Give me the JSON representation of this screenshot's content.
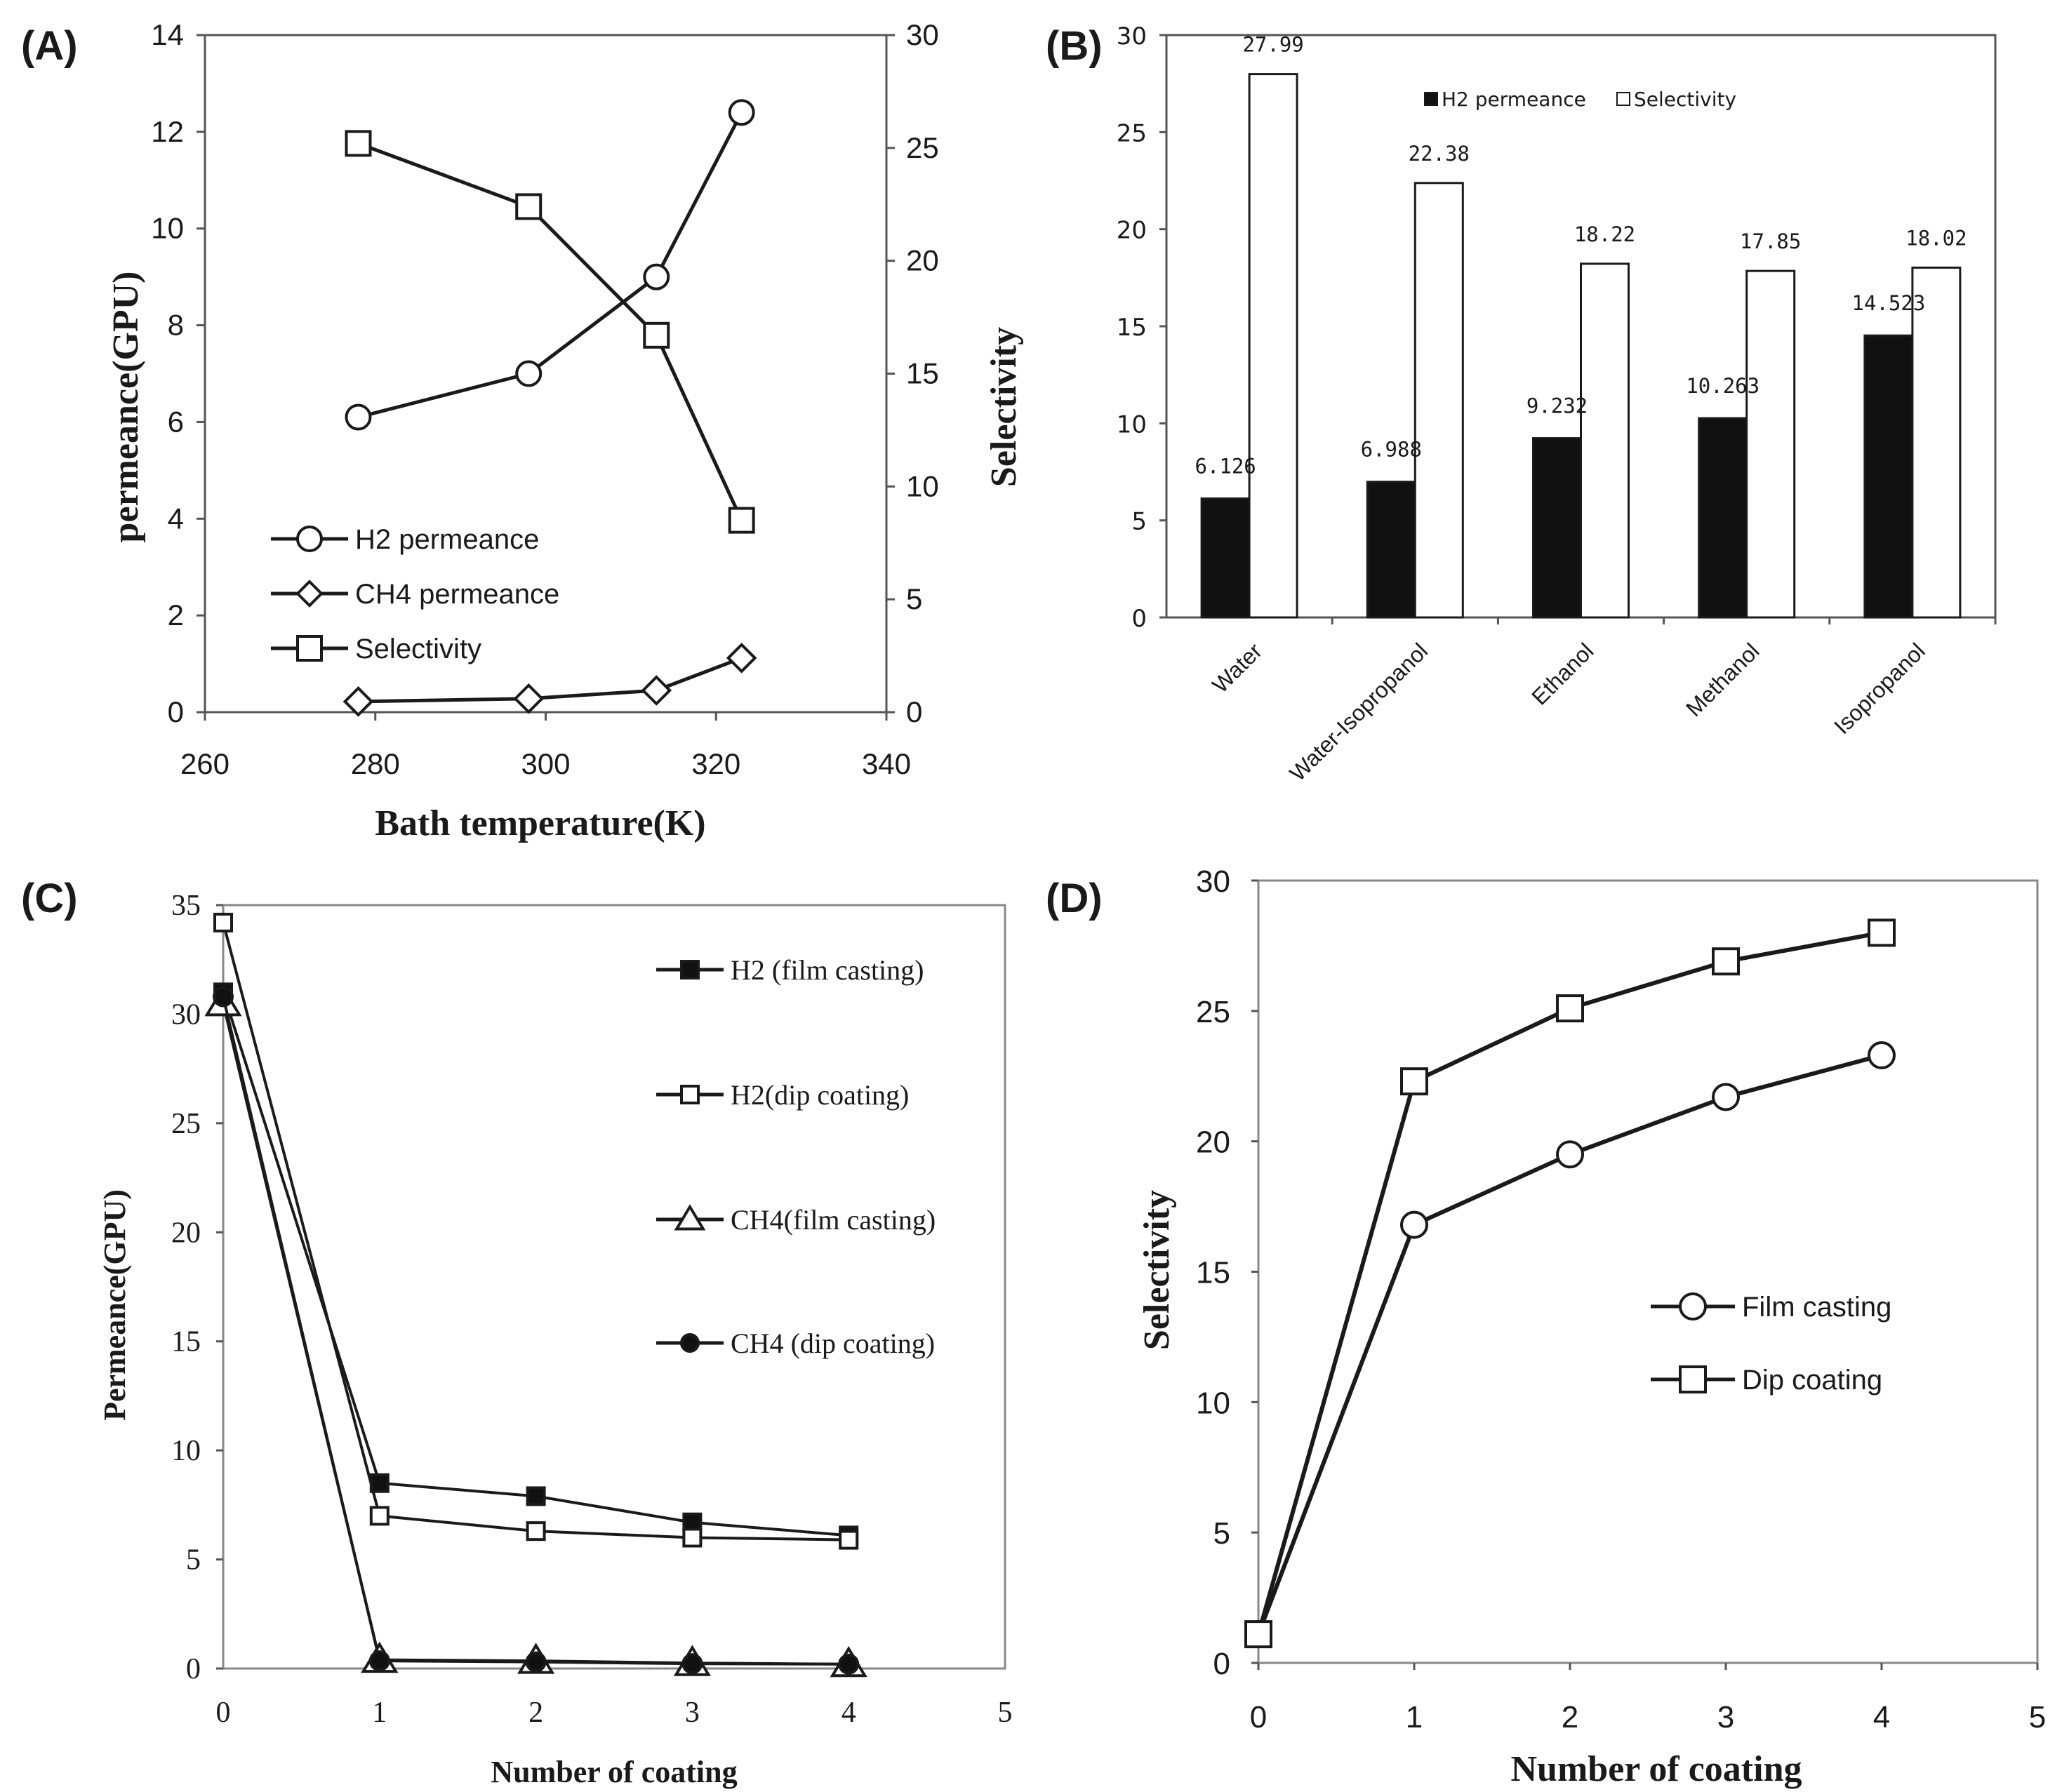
{
  "colors": {
    "line": "#1a1a1a",
    "frame": "#555555",
    "fill_open": "#ffffff",
    "fill_solid": "#111111"
  },
  "chart_data": [
    {
      "panel": "(A)",
      "type": "line",
      "title": "",
      "xlabel": "Bath temperature(K)",
      "ylabel": "permeance(GPU)",
      "y2label": "Selectivity",
      "xlim": [
        260,
        340
      ],
      "ylim": [
        0,
        14
      ],
      "y2lim": [
        0,
        30
      ],
      "xticks": [
        "260",
        "280",
        "300",
        "320",
        "340"
      ],
      "yticks": [
        "0",
        "2",
        "4",
        "6",
        "8",
        "10",
        "12",
        "14"
      ],
      "y2ticks": [
        "0",
        "5",
        "10",
        "15",
        "20",
        "25",
        "30"
      ],
      "x": [
        278,
        298,
        313,
        323
      ],
      "series": [
        {
          "name": "H2 permeance",
          "marker": "circle",
          "axis": "left",
          "values": [
            6.1,
            7.0,
            9.0,
            12.4
          ]
        },
        {
          "name": "CH4 permeance",
          "marker": "diamond",
          "axis": "left",
          "values": [
            0.22,
            0.28,
            0.45,
            1.12
          ]
        },
        {
          "name": "Selectivity",
          "marker": "square",
          "axis": "right",
          "values": [
            25.2,
            22.4,
            16.7,
            8.5
          ]
        }
      ]
    },
    {
      "panel": "(B)",
      "type": "bar",
      "title": "",
      "xlabel": "",
      "ylabel": "",
      "ylim": [
        0,
        30
      ],
      "yticks": [
        "0",
        "5",
        "10",
        "15",
        "20",
        "25",
        "30"
      ],
      "categories": [
        "Water",
        "Water-Isopropanol",
        "Ethanol",
        "Methanol",
        "Isopropanol"
      ],
      "series": [
        {
          "name": "H2 permeance",
          "fill": "solid",
          "values": [
            6.126,
            6.988,
            9.232,
            10.263,
            14.523
          ],
          "labels": [
            "6.126",
            "6.988",
            "9.232",
            "10.263",
            "14.523"
          ]
        },
        {
          "name": "Selectivity",
          "fill": "open",
          "values": [
            27.99,
            22.38,
            18.22,
            17.85,
            18.02
          ],
          "labels": [
            "27.99",
            "22.38",
            "18.22",
            "17.85",
            "18.02"
          ]
        }
      ]
    },
    {
      "panel": "(C)",
      "type": "line",
      "title": "",
      "xlabel": "Number of coating",
      "ylabel": "Permeance(GPU)",
      "xlim": [
        0,
        5
      ],
      "ylim": [
        0,
        35
      ],
      "xticks": [
        "0",
        "1",
        "2",
        "3",
        "4",
        "5"
      ],
      "yticks": [
        "0",
        "5",
        "10",
        "15",
        "20",
        "25",
        "30",
        "35"
      ],
      "x": [
        0,
        1,
        2,
        3,
        4
      ],
      "series": [
        {
          "name": "H2 (film casting)",
          "marker": "square-filled",
          "values": [
            31.0,
            8.5,
            7.9,
            6.7,
            6.1
          ]
        },
        {
          "name": "H2(dip coating)",
          "marker": "square-open",
          "values": [
            34.2,
            7.0,
            6.3,
            6.0,
            5.9
          ]
        },
        {
          "name": "CH4(film casting)",
          "marker": "triangle-open",
          "values": [
            30.5,
            0.4,
            0.35,
            0.25,
            0.2
          ]
        },
        {
          "name": "CH4 (dip coating)",
          "marker": "circle-filled",
          "values": [
            30.8,
            0.35,
            0.3,
            0.22,
            0.2
          ]
        }
      ]
    },
    {
      "panel": "(D)",
      "type": "line",
      "title": "",
      "xlabel": "Number of coating",
      "ylabel": "Selectivity",
      "xlim": [
        0,
        5
      ],
      "ylim": [
        0,
        30
      ],
      "xticks": [
        "0",
        "1",
        "2",
        "3",
        "4",
        "5"
      ],
      "yticks": [
        "0",
        "5",
        "10",
        "15",
        "20",
        "25",
        "30"
      ],
      "x": [
        0,
        1,
        2,
        3,
        4
      ],
      "series": [
        {
          "name": "Film casting",
          "marker": "circle",
          "values": [
            1.1,
            16.8,
            19.5,
            21.7,
            23.3
          ]
        },
        {
          "name": "Dip coating",
          "marker": "square",
          "values": [
            1.1,
            22.3,
            25.1,
            26.9,
            28.0
          ]
        }
      ]
    }
  ]
}
